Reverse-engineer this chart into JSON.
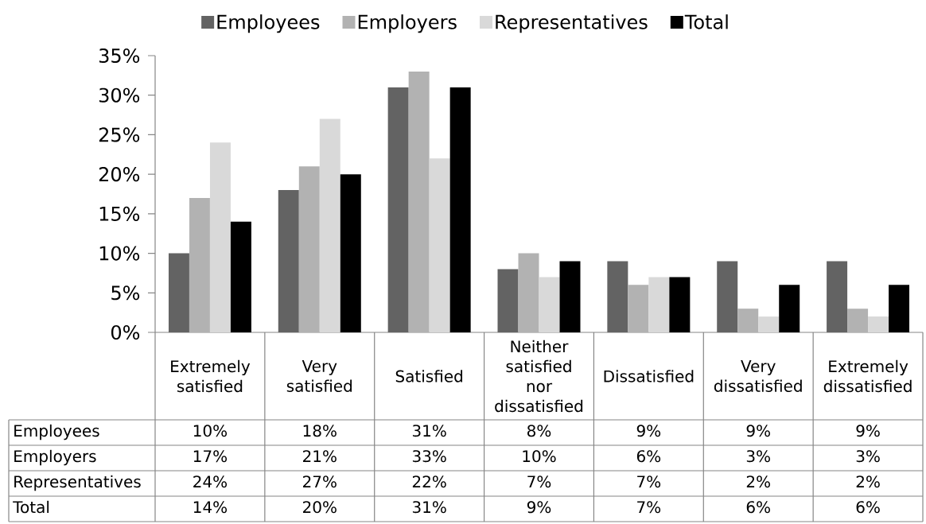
{
  "chart_data": {
    "type": "bar",
    "categories": [
      "Extremely satisfied",
      "Very satisfied",
      "Satisfied",
      "Neither satisfied nor dissatisfied",
      "Dissatisfied",
      "Very dissatisfied",
      "Extremely dissatisfied"
    ],
    "series": [
      {
        "name": "Employees",
        "color": "#636363",
        "values": [
          10,
          18,
          31,
          8,
          9,
          9,
          9
        ],
        "value_labels": [
          "10%",
          "18%",
          "31%",
          "8%",
          "9%",
          "9%",
          "9%"
        ]
      },
      {
        "name": "Employers",
        "color": "#b2b2b2",
        "values": [
          17,
          21,
          33,
          10,
          6,
          3,
          3
        ],
        "value_labels": [
          "17%",
          "21%",
          "33%",
          "10%",
          "6%",
          "3%",
          "3%"
        ]
      },
      {
        "name": "Representatives",
        "color": "#d9d9d9",
        "values": [
          24,
          27,
          22,
          7,
          7,
          2,
          2
        ],
        "value_labels": [
          "24%",
          "27%",
          "22%",
          "7%",
          "7%",
          "2%",
          "2%"
        ]
      },
      {
        "name": "Total",
        "color": "#000000",
        "values": [
          14,
          20,
          31,
          9,
          7,
          6,
          6
        ],
        "value_labels": [
          "14%",
          "20%",
          "31%",
          "9%",
          "7%",
          "6%",
          "6%"
        ]
      }
    ],
    "ylim": [
      0,
      35
    ],
    "yticks": [
      {
        "value": 0,
        "label": "0%"
      },
      {
        "value": 5,
        "label": "5%"
      },
      {
        "value": 10,
        "label": "10%"
      },
      {
        "value": 15,
        "label": "15%"
      },
      {
        "value": 20,
        "label": "20%"
      },
      {
        "value": 25,
        "label": "25%"
      },
      {
        "value": 30,
        "label": "30%"
      },
      {
        "value": 35,
        "label": "35%"
      }
    ],
    "legend": "top"
  }
}
